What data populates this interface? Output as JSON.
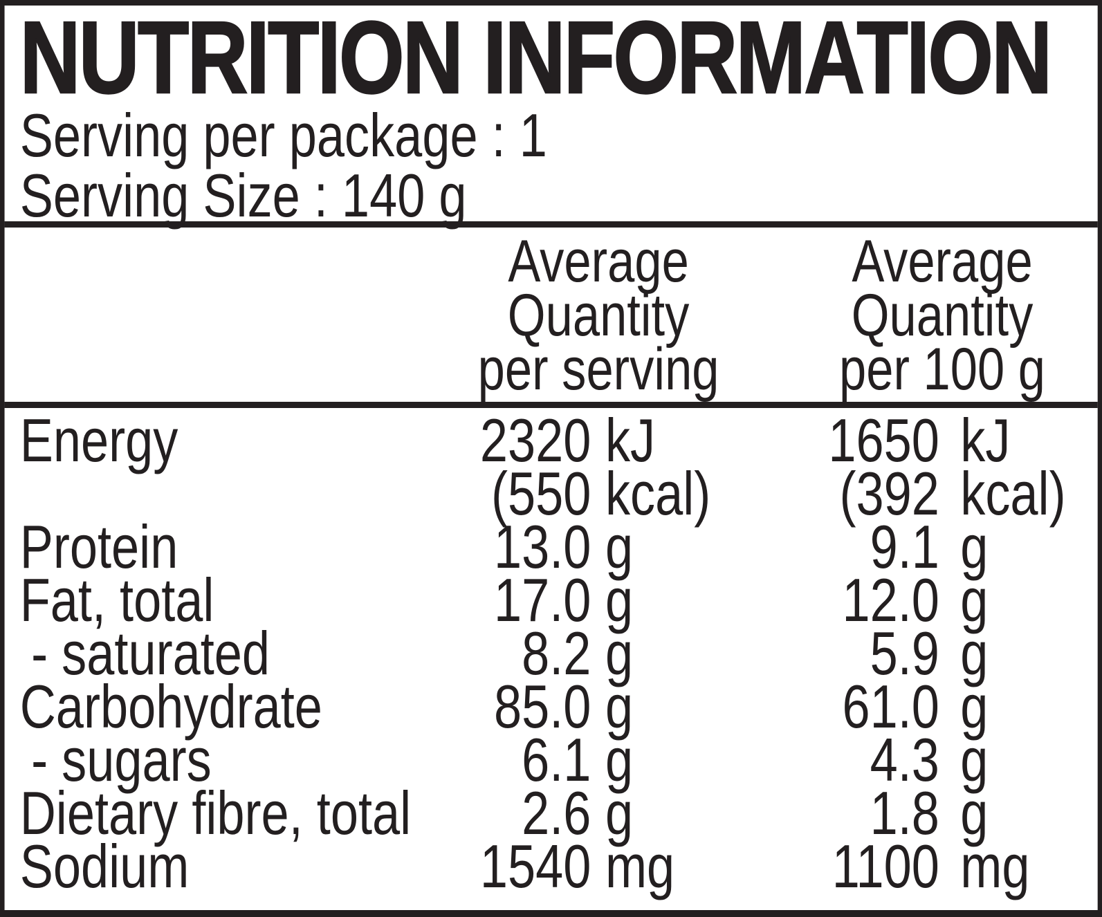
{
  "label": {
    "title": "NUTRITION INFORMATION",
    "serving_per_package": "Serving per package : 1",
    "serving_size": "Serving Size : 140 g"
  },
  "header": {
    "per_serving": [
      "Average",
      "Quantity",
      "per serving"
    ],
    "per_100g": [
      "Average",
      "Quantity",
      "per 100 g"
    ]
  },
  "rows": [
    {
      "label": "Energy",
      "serving_value": "2320",
      "serving_unit": "kJ",
      "per100_value": "1650",
      "per100_unit": "kJ"
    },
    {
      "label": "",
      "serving_value": "(550",
      "serving_unit": "kcal)",
      "per100_value": "(392",
      "per100_unit": "kcal)"
    },
    {
      "label": "Protein",
      "serving_value": "13.0",
      "serving_unit": "g",
      "per100_value": "9.1",
      "per100_unit": "g"
    },
    {
      "label": "Fat, total",
      "serving_value": "17.0",
      "serving_unit": "g",
      "per100_value": "12.0",
      "per100_unit": "g"
    },
    {
      "label": "- saturated",
      "serving_value": "8.2",
      "serving_unit": "g",
      "per100_value": "5.9",
      "per100_unit": "g"
    },
    {
      "label": "Carbohydrate",
      "serving_value": "85.0",
      "serving_unit": "g",
      "per100_value": "61.0",
      "per100_unit": "g"
    },
    {
      "label": "- sugars",
      "serving_value": "6.1",
      "serving_unit": "g",
      "per100_value": "4.3",
      "per100_unit": "g"
    },
    {
      "label": "Dietary fibre, total",
      "serving_value": "2.6",
      "serving_unit": "g",
      "per100_value": "1.8",
      "per100_unit": "g"
    },
    {
      "label": "Sodium",
      "serving_value": "1540",
      "serving_unit": "mg",
      "per100_value": "1100",
      "per100_unit": "mg"
    }
  ],
  "colors": {
    "text": "#231f20",
    "border": "#231f20",
    "background": "#ffffff"
  }
}
